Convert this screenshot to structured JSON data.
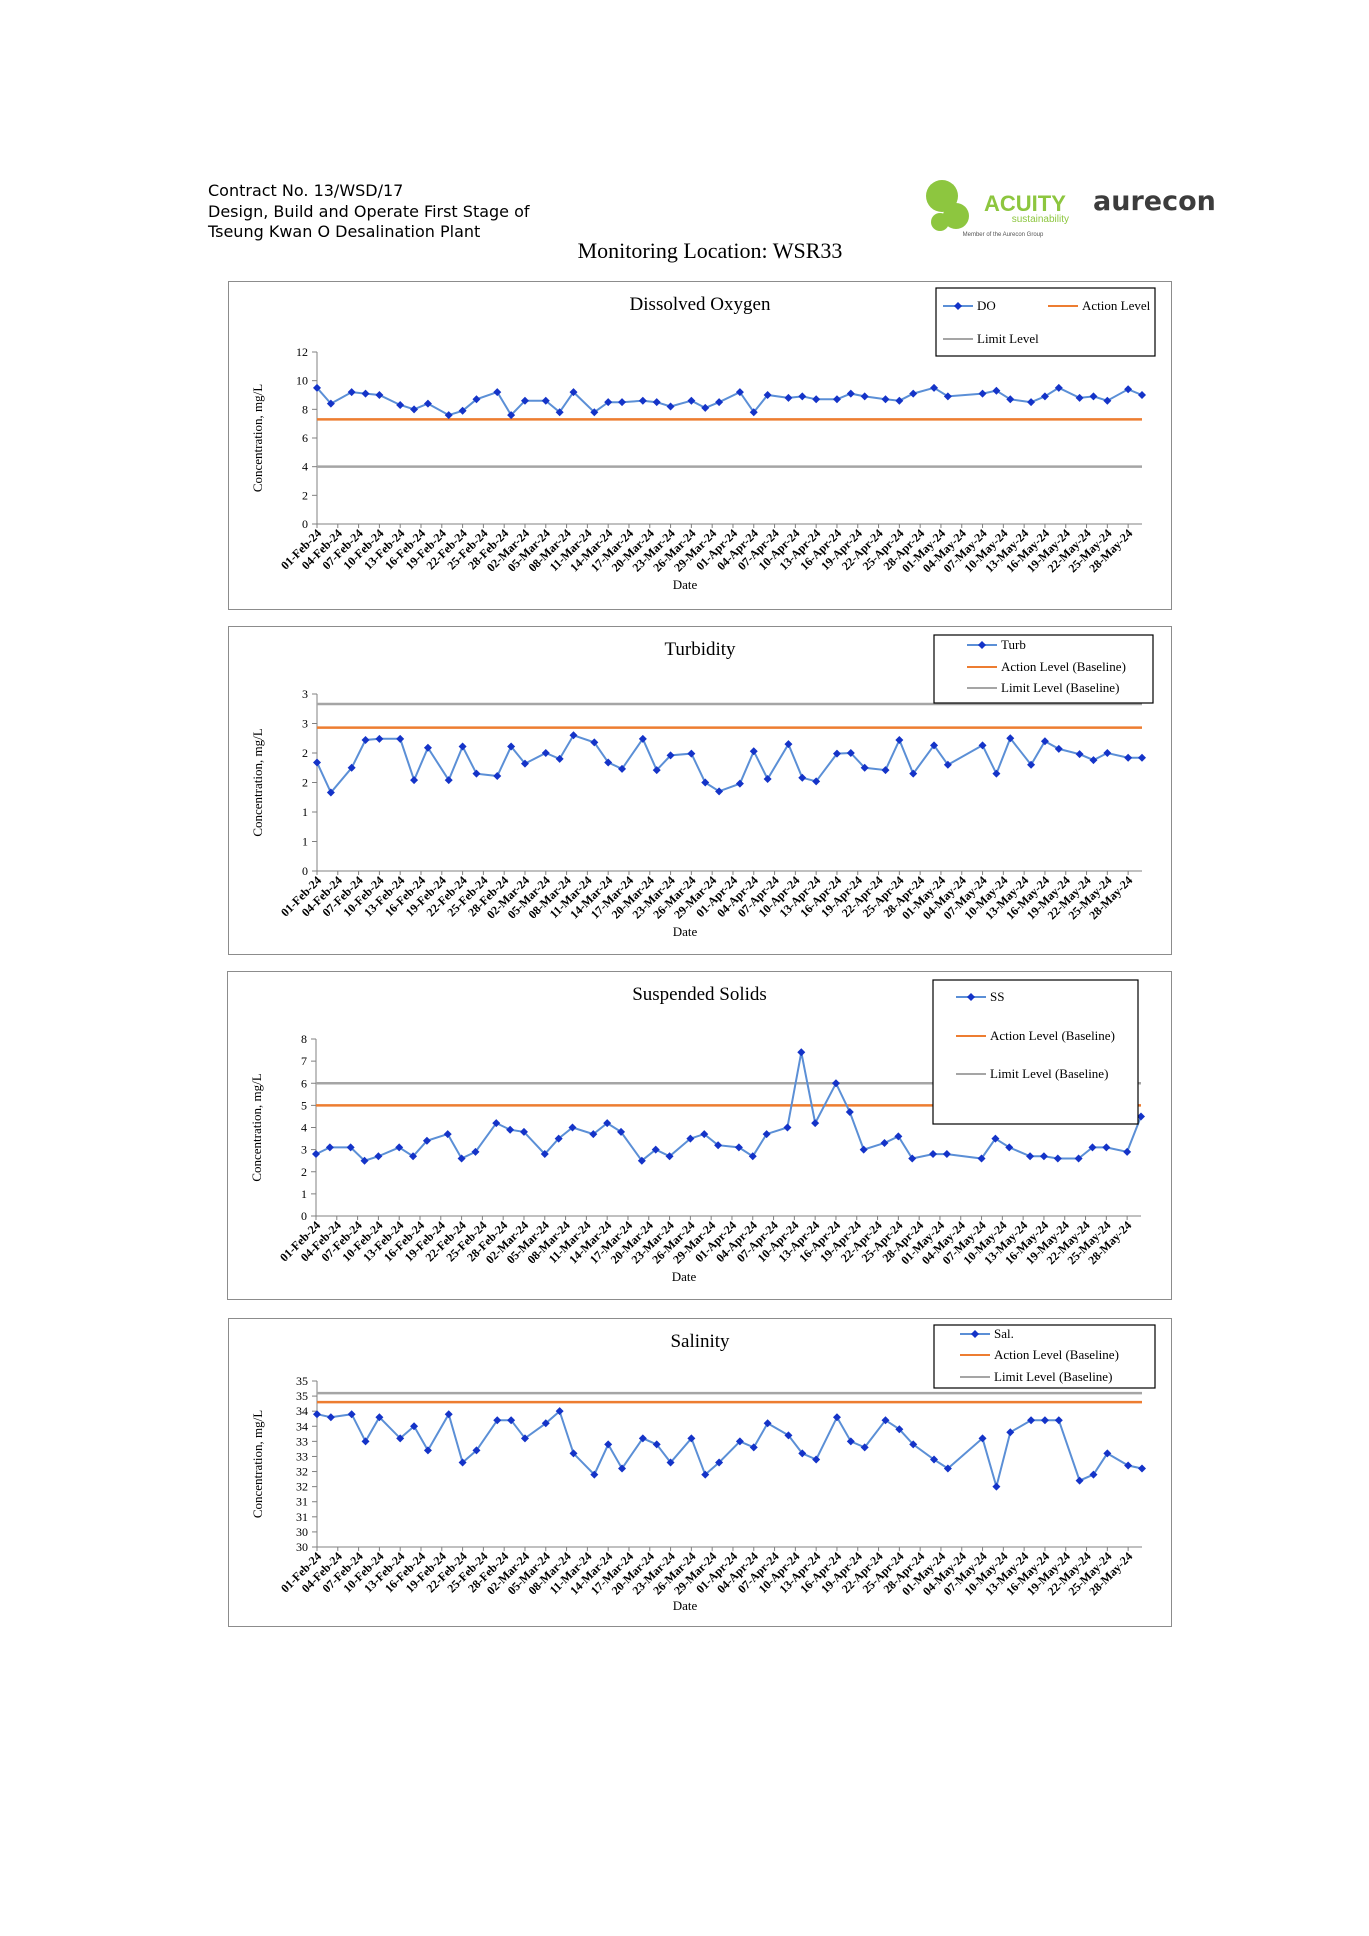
{
  "header": {
    "lines": [
      "Contract No. 13/WSD/17",
      "Design, Build and Operate First Stage of",
      "Tseung Kwan O Desalination Plant"
    ],
    "logos": {
      "acuity": "ACUITY",
      "acuity_sub": "sustainability",
      "acuity_member": "Member of the Aurecon Group",
      "aurecon": "aurecon"
    },
    "location": "Monitoring Location: WSR33"
  },
  "chart_data": [
    {
      "type": "line",
      "title": "Dissolved Oxygen",
      "ylabel": "Concentration, mg/L",
      "xlabel": "Date",
      "x": [
        "01-Feb-24",
        "03-Feb-24",
        "06-Feb-24",
        "08-Feb-24",
        "10-Feb-24",
        "13-Feb-24",
        "15-Feb-24",
        "17-Feb-24",
        "20-Feb-24",
        "22-Feb-24",
        "24-Feb-24",
        "27-Feb-24",
        "29-Feb-24",
        "02-Mar-24",
        "05-Mar-24",
        "07-Mar-24",
        "09-Mar-24",
        "12-Mar-24",
        "14-Mar-24",
        "16-Mar-24",
        "19-Mar-24",
        "21-Mar-24",
        "23-Mar-24",
        "26-Mar-24",
        "28-Mar-24",
        "30-Mar-24",
        "02-Apr-24",
        "04-Apr-24",
        "06-Apr-24",
        "09-Apr-24",
        "11-Apr-24",
        "13-Apr-24",
        "16-Apr-24",
        "18-Apr-24",
        "20-Apr-24",
        "23-Apr-24",
        "25-Apr-24",
        "27-Apr-24",
        "30-Apr-24",
        "02-May-24",
        "07-May-24",
        "09-May-24",
        "11-May-24",
        "14-May-24",
        "16-May-24",
        "18-May-24",
        "21-May-24",
        "23-May-24",
        "25-May-24",
        "28-May-24",
        "30-May-24"
      ],
      "xlim": [
        "01-Feb-24",
        "30-May-24"
      ],
      "xticks": [
        "01-Feb-24",
        "04-Feb-24",
        "07-Feb-24",
        "10-Feb-24",
        "13-Feb-24",
        "16-Feb-24",
        "19-Feb-24",
        "22-Feb-24",
        "25-Feb-24",
        "28-Feb-24",
        "02-Mar-24",
        "05-Mar-24",
        "08-Mar-24",
        "11-Mar-24",
        "14-Mar-24",
        "17-Mar-24",
        "20-Mar-24",
        "23-Mar-24",
        "26-Mar-24",
        "29-Mar-24",
        "01-Apr-24",
        "04-Apr-24",
        "07-Apr-24",
        "10-Apr-24",
        "13-Apr-24",
        "16-Apr-24",
        "19-Apr-24",
        "22-Apr-24",
        "25-Apr-24",
        "28-Apr-24",
        "01-May-24",
        "04-May-24",
        "07-May-24",
        "10-May-24",
        "13-May-24",
        "16-May-24",
        "19-May-24",
        "22-May-24",
        "25-May-24",
        "28-May-24"
      ],
      "ylim": [
        0,
        12
      ],
      "yticks": [
        0,
        2,
        4,
        6,
        8,
        10,
        12
      ],
      "series": [
        {
          "name": "DO",
          "color": "#5b8fd6",
          "marker_color": "#1433c8",
          "values": [
            9.5,
            8.4,
            9.2,
            9.1,
            9.0,
            8.3,
            8.0,
            8.4,
            7.6,
            7.9,
            8.7,
            9.2,
            7.6,
            8.6,
            8.6,
            7.8,
            9.2,
            7.8,
            8.5,
            8.5,
            8.6,
            8.5,
            8.2,
            8.6,
            8.1,
            8.5,
            9.2,
            7.8,
            9.0,
            8.8,
            8.9,
            8.7,
            8.7,
            9.1,
            8.9,
            8.7,
            8.6,
            9.1,
            9.5,
            8.9,
            9.1,
            9.3,
            8.7,
            8.5,
            8.9,
            9.5,
            8.8,
            8.9,
            8.6,
            9.4,
            9.0
          ]
        }
      ],
      "lines": [
        {
          "name": "Action Level",
          "color": "#ed7d31",
          "value": 7.3
        },
        {
          "name": "Limit Level",
          "color": "#a5a5a5",
          "value": 4.0
        }
      ]
    },
    {
      "type": "line",
      "title": "Turbidity",
      "ylabel": "Concentration, mg/L",
      "xlabel": "Date",
      "x": [
        "01-Feb-24",
        "03-Feb-24",
        "06-Feb-24",
        "08-Feb-24",
        "10-Feb-24",
        "13-Feb-24",
        "15-Feb-24",
        "17-Feb-24",
        "20-Feb-24",
        "22-Feb-24",
        "24-Feb-24",
        "27-Feb-24",
        "29-Feb-24",
        "02-Mar-24",
        "05-Mar-24",
        "07-Mar-24",
        "09-Mar-24",
        "12-Mar-24",
        "14-Mar-24",
        "16-Mar-24",
        "19-Mar-24",
        "21-Mar-24",
        "23-Mar-24",
        "26-Mar-24",
        "28-Mar-24",
        "30-Mar-24",
        "02-Apr-24",
        "04-Apr-24",
        "06-Apr-24",
        "09-Apr-24",
        "11-Apr-24",
        "13-Apr-24",
        "16-Apr-24",
        "18-Apr-24",
        "20-Apr-24",
        "23-Apr-24",
        "25-Apr-24",
        "27-Apr-24",
        "30-Apr-24",
        "02-May-24",
        "07-May-24",
        "09-May-24",
        "11-May-24",
        "14-May-24",
        "16-May-24",
        "18-May-24",
        "21-May-24",
        "23-May-24",
        "25-May-24",
        "28-May-24",
        "30-May-24"
      ],
      "xlim": [
        "01-Feb-24",
        "30-May-24"
      ],
      "xticks": [
        "01-Feb-24",
        "04-Feb-24",
        "07-Feb-24",
        "10-Feb-24",
        "13-Feb-24",
        "16-Feb-24",
        "19-Feb-24",
        "22-Feb-24",
        "25-Feb-24",
        "28-Feb-24",
        "02-Mar-24",
        "05-Mar-24",
        "08-Mar-24",
        "11-Mar-24",
        "14-Mar-24",
        "17-Mar-24",
        "20-Mar-24",
        "23-Mar-24",
        "26-Mar-24",
        "29-Mar-24",
        "01-Apr-24",
        "04-Apr-24",
        "07-Apr-24",
        "10-Apr-24",
        "13-Apr-24",
        "16-Apr-24",
        "19-Apr-24",
        "22-Apr-24",
        "25-Apr-24",
        "28-Apr-24",
        "01-May-24",
        "04-May-24",
        "07-May-24",
        "10-May-24",
        "13-May-24",
        "16-May-24",
        "19-May-24",
        "22-May-24",
        "25-May-24",
        "28-May-24"
      ],
      "ylim": [
        0,
        3
      ],
      "yticks": [
        0,
        {
          "value": 0.5,
          "label": "1"
        },
        1,
        {
          "value": 1.5,
          "label": "2"
        },
        2,
        {
          "value": 2.5,
          "label": "3"
        },
        3
      ],
      "series": [
        {
          "name": "Turb",
          "color": "#5b8fd6",
          "marker_color": "#1433c8",
          "values": [
            1.84,
            1.33,
            1.75,
            2.22,
            2.24,
            2.24,
            1.54,
            2.09,
            1.54,
            2.11,
            1.65,
            1.61,
            2.11,
            1.82,
            2.0,
            1.9,
            2.3,
            2.18,
            1.84,
            1.73,
            2.24,
            1.71,
            1.96,
            1.99,
            1.5,
            1.35,
            1.48,
            2.03,
            1.56,
            2.15,
            1.58,
            1.52,
            1.99,
            2.0,
            1.75,
            1.71,
            2.22,
            1.65,
            2.13,
            1.8,
            2.13,
            1.65,
            2.25,
            1.8,
            2.2,
            2.07,
            1.98,
            1.88,
            2.0,
            1.92,
            1.92
          ]
        }
      ],
      "lines": [
        {
          "name": "Action Level (Baseline)",
          "color": "#ed7d31",
          "value": 2.43
        },
        {
          "name": "Limit Level (Baseline)",
          "color": "#a5a5a5",
          "value": 2.83
        }
      ]
    },
    {
      "type": "line",
      "title": "Suspended Solids",
      "ylabel": "Concentration, mg/L",
      "xlabel": "Date",
      "x": [
        "01-Feb-24",
        "03-Feb-24",
        "06-Feb-24",
        "08-Feb-24",
        "10-Feb-24",
        "13-Feb-24",
        "15-Feb-24",
        "17-Feb-24",
        "20-Feb-24",
        "22-Feb-24",
        "24-Feb-24",
        "27-Feb-24",
        "29-Feb-24",
        "02-Mar-24",
        "05-Mar-24",
        "07-Mar-24",
        "09-Mar-24",
        "12-Mar-24",
        "14-Mar-24",
        "16-Mar-24",
        "19-Mar-24",
        "21-Mar-24",
        "23-Mar-24",
        "26-Mar-24",
        "28-Mar-24",
        "30-Mar-24",
        "02-Apr-24",
        "04-Apr-24",
        "06-Apr-24",
        "09-Apr-24",
        "11-Apr-24",
        "13-Apr-24",
        "16-Apr-24",
        "18-Apr-24",
        "20-Apr-24",
        "23-Apr-24",
        "25-Apr-24",
        "27-Apr-24",
        "30-Apr-24",
        "02-May-24",
        "07-May-24",
        "09-May-24",
        "11-May-24",
        "14-May-24",
        "16-May-24",
        "18-May-24",
        "21-May-24",
        "23-May-24",
        "25-May-24",
        "28-May-24",
        "30-May-24"
      ],
      "xlim": [
        "01-Feb-24",
        "30-May-24"
      ],
      "xticks": [
        "01-Feb-24",
        "04-Feb-24",
        "07-Feb-24",
        "10-Feb-24",
        "13-Feb-24",
        "16-Feb-24",
        "19-Feb-24",
        "22-Feb-24",
        "25-Feb-24",
        "28-Feb-24",
        "02-Mar-24",
        "05-Mar-24",
        "08-Mar-24",
        "11-Mar-24",
        "14-Mar-24",
        "17-Mar-24",
        "20-Mar-24",
        "23-Mar-24",
        "26-Mar-24",
        "29-Mar-24",
        "01-Apr-24",
        "04-Apr-24",
        "07-Apr-24",
        "10-Apr-24",
        "13-Apr-24",
        "16-Apr-24",
        "19-Apr-24",
        "22-Apr-24",
        "25-Apr-24",
        "28-Apr-24",
        "01-May-24",
        "04-May-24",
        "07-May-24",
        "10-May-24",
        "13-May-24",
        "16-May-24",
        "19-May-24",
        "22-May-24",
        "25-May-24",
        "28-May-24"
      ],
      "ylim": [
        0,
        8
      ],
      "yticks": [
        0,
        1,
        2,
        3,
        4,
        5,
        6,
        7,
        8
      ],
      "series": [
        {
          "name": "SS",
          "color": "#5b8fd6",
          "marker_color": "#1433c8",
          "values": [
            2.8,
            3.1,
            3.1,
            2.5,
            2.7,
            3.1,
            2.7,
            3.4,
            3.7,
            2.6,
            2.9,
            4.2,
            3.9,
            3.8,
            2.8,
            3.5,
            4.0,
            3.7,
            4.2,
            3.8,
            2.5,
            3.0,
            2.7,
            3.5,
            3.7,
            3.2,
            3.1,
            2.7,
            3.7,
            4.0,
            7.4,
            4.2,
            6.0,
            4.7,
            3.0,
            3.3,
            3.6,
            2.6,
            2.8,
            2.8,
            2.6,
            3.5,
            3.1,
            2.7,
            2.7,
            2.6,
            2.6,
            3.1,
            3.1,
            2.9,
            4.5
          ]
        }
      ],
      "lines": [
        {
          "name": "Action Level (Baseline)",
          "color": "#ed7d31",
          "value": 5
        },
        {
          "name": "Limit Level (Baseline)",
          "color": "#a5a5a5",
          "value": 6
        }
      ]
    },
    {
      "type": "line",
      "title": "Salinity",
      "ylabel": "Concentration, mg/L",
      "xlabel": "Date",
      "x": [
        "01-Feb-24",
        "03-Feb-24",
        "06-Feb-24",
        "08-Feb-24",
        "10-Feb-24",
        "13-Feb-24",
        "15-Feb-24",
        "17-Feb-24",
        "20-Feb-24",
        "22-Feb-24",
        "24-Feb-24",
        "27-Feb-24",
        "29-Feb-24",
        "02-Mar-24",
        "05-Mar-24",
        "07-Mar-24",
        "09-Mar-24",
        "12-Mar-24",
        "14-Mar-24",
        "16-Mar-24",
        "19-Mar-24",
        "21-Mar-24",
        "23-Mar-24",
        "26-Mar-24",
        "28-Mar-24",
        "30-Mar-24",
        "02-Apr-24",
        "04-Apr-24",
        "06-Apr-24",
        "09-Apr-24",
        "11-Apr-24",
        "13-Apr-24",
        "16-Apr-24",
        "18-Apr-24",
        "20-Apr-24",
        "23-Apr-24",
        "25-Apr-24",
        "27-Apr-24",
        "30-Apr-24",
        "02-May-24",
        "07-May-24",
        "09-May-24",
        "11-May-24",
        "14-May-24",
        "16-May-24",
        "18-May-24",
        "21-May-24",
        "23-May-24",
        "25-May-24",
        "28-May-24",
        "30-May-24"
      ],
      "xlim": [
        "01-Feb-24",
        "30-May-24"
      ],
      "xticks": [
        "01-Feb-24",
        "04-Feb-24",
        "07-Feb-24",
        "10-Feb-24",
        "13-Feb-24",
        "16-Feb-24",
        "19-Feb-24",
        "22-Feb-24",
        "25-Feb-24",
        "28-Feb-24",
        "02-Mar-24",
        "05-Mar-24",
        "08-Mar-24",
        "11-Mar-24",
        "14-Mar-24",
        "17-Mar-24",
        "20-Mar-24",
        "23-Mar-24",
        "26-Mar-24",
        "29-Mar-24",
        "01-Apr-24",
        "04-Apr-24",
        "07-Apr-24",
        "10-Apr-24",
        "13-Apr-24",
        "16-Apr-24",
        "19-Apr-24",
        "22-Apr-24",
        "25-Apr-24",
        "28-Apr-24",
        "01-May-24",
        "04-May-24",
        "07-May-24",
        "10-May-24",
        "13-May-24",
        "16-May-24",
        "19-May-24",
        "22-May-24",
        "25-May-24",
        "28-May-24"
      ],
      "ylim": [
        29.5,
        35
      ],
      "yticks": [
        {
          "value": 29.5,
          "label": "30"
        },
        30,
        {
          "value": 30.5,
          "label": "31"
        },
        31,
        {
          "value": 31.5,
          "label": "32"
        },
        32,
        {
          "value": 32.5,
          "label": "33"
        },
        33,
        {
          "value": 33.5,
          "label": "34"
        },
        34,
        {
          "value": 34.5,
          "label": "35"
        },
        35
      ],
      "series": [
        {
          "name": "Sal.",
          "color": "#5b8fd6",
          "marker_color": "#1433c8",
          "values": [
            33.9,
            33.8,
            33.9,
            33.0,
            33.8,
            33.1,
            33.5,
            32.7,
            33.9,
            32.3,
            32.7,
            33.7,
            33.7,
            33.1,
            33.6,
            34.0,
            32.6,
            31.9,
            32.9,
            32.1,
            33.1,
            32.9,
            32.3,
            33.1,
            31.9,
            32.3,
            33.0,
            32.8,
            33.6,
            33.2,
            32.6,
            32.4,
            33.8,
            33.0,
            32.8,
            33.7,
            33.4,
            32.9,
            32.4,
            32.1,
            33.1,
            31.5,
            33.3,
            33.7,
            33.7,
            33.7,
            31.7,
            31.9,
            32.6,
            32.2,
            32.1
          ]
        }
      ],
      "lines": [
        {
          "name": "Action Level (Baseline)",
          "color": "#ed7d31",
          "value": 34.3
        },
        {
          "name": "Limit Level (Baseline)",
          "color": "#a5a5a5",
          "value": 34.6
        }
      ]
    }
  ]
}
